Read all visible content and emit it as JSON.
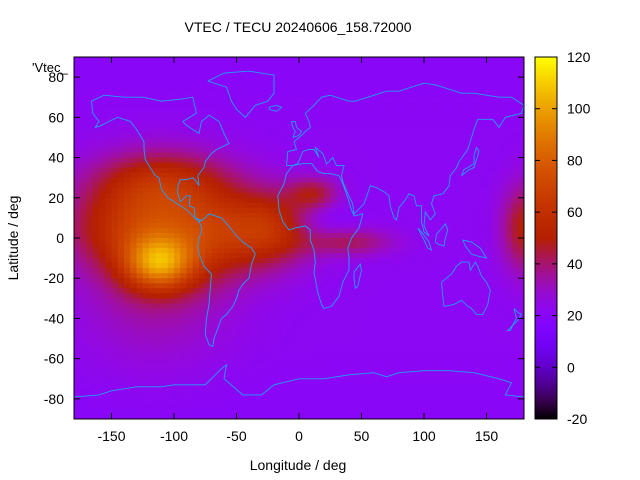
{
  "chart_data": {
    "type": "heatmap",
    "title": "VTEC / TECU 20240606_158.72000",
    "xlabel": "Longitude / deg",
    "ylabel": "Latitude / deg",
    "key_label": "'Vtec_",
    "xlim": [
      -180,
      180
    ],
    "ylim": [
      -90,
      90
    ],
    "x_ticks": [
      -150,
      -100,
      -50,
      0,
      50,
      100,
      150
    ],
    "y_ticks": [
      -80,
      -60,
      -40,
      -20,
      0,
      20,
      40,
      60,
      80
    ],
    "colorbar": {
      "min": -20,
      "max": 120,
      "ticks": [
        -20,
        0,
        20,
        40,
        60,
        80,
        100,
        120
      ]
    },
    "grid": false,
    "field_model": {
      "description": "approximate VTEC field in TECU estimated from colors",
      "background_tecu": 22,
      "features": [
        {
          "name": "equatorial-anomaly-americas",
          "lon": -115,
          "lat": -15,
          "peak_tecu": 95
        },
        {
          "name": "tropical-band-americas",
          "lon": -100,
          "lat": 10,
          "peak_tecu": 60
        },
        {
          "name": "atlantic-band",
          "lon": -20,
          "lat": 5,
          "peak_tecu": 55
        },
        {
          "name": "africa-band",
          "lon": 30,
          "lat": 0,
          "peak_tecu": 45
        },
        {
          "name": "pacific-east-edge",
          "lon": 178,
          "lat": 5,
          "peak_tecu": 50
        }
      ]
    }
  }
}
